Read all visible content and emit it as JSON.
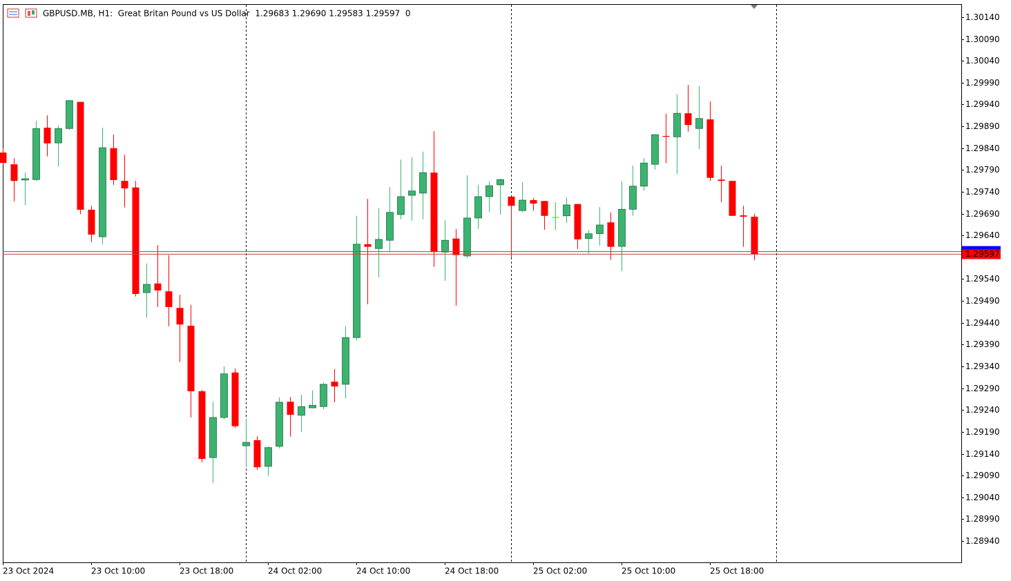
{
  "chart_data": {
    "type": "candlestick",
    "title": "GBPUSD.MB, H1:  Great Britan Pound vs US Dollar  1.29683 1.29690 1.29583 1.29597  0",
    "categories": [
      "23 Oct 2024",
      null,
      null,
      null,
      null,
      null,
      null,
      null,
      "23 Oct 10:00",
      null,
      null,
      null,
      null,
      null,
      null,
      null,
      "23 Oct 18:00",
      null,
      null,
      null,
      null,
      null,
      null,
      null,
      "24 Oct 02:00",
      null,
      null,
      null,
      null,
      null,
      null,
      null,
      "24 Oct 10:00",
      null,
      null,
      null,
      null,
      null,
      null,
      null,
      "24 Oct 18:00",
      null,
      null,
      null,
      null,
      null,
      null,
      null,
      "25 Oct 02:00",
      null,
      null,
      null,
      null,
      null,
      null,
      null,
      "25 Oct 10:00",
      null,
      null,
      null,
      null,
      null,
      null,
      null,
      "25 Oct 18:00",
      null,
      null,
      null,
      null
    ],
    "open": [
      1.2983,
      1.29803,
      1.29767,
      1.29768,
      1.29887,
      1.29852,
      1.29885,
      1.29946,
      1.29699,
      1.29637,
      1.2984,
      1.29765,
      1.2975,
      1.29509,
      1.2953,
      1.29512,
      1.29474,
      1.29433,
      1.29283,
      1.29131,
      1.29223,
      1.29326,
      1.29158,
      1.29171,
      1.29111,
      1.29157,
      1.29259,
      1.29228,
      1.29245,
      1.29248,
      1.29305,
      1.29299,
      1.29406,
      1.2962,
      1.2961,
      1.29629,
      1.29688,
      1.29732,
      1.29737,
      1.29784,
      1.29602,
      1.29633,
      1.29593,
      1.2968,
      1.29729,
      1.29756,
      1.29729,
      1.29697,
      1.29721,
      1.29719,
      1.29682,
      1.29685,
      1.29712,
      1.29633,
      1.29644,
      1.2967,
      1.29615,
      1.297,
      1.29753,
      1.29803,
      1.29868,
      1.29866,
      1.2992,
      1.29885,
      1.29906,
      1.29768,
      1.29765,
      1.29686,
      1.29683
    ],
    "high": [
      1.2984,
      1.29817,
      1.29784,
      1.29903,
      1.29915,
      1.29892,
      1.29949,
      1.29946,
      1.29708,
      1.29887,
      1.29871,
      1.29825,
      1.29765,
      1.29576,
      1.29618,
      1.29595,
      1.29504,
      1.29481,
      1.29286,
      1.29259,
      1.2934,
      1.29335,
      1.2922,
      1.2918,
      1.29157,
      1.29269,
      1.2927,
      1.29275,
      1.29285,
      1.29302,
      1.29334,
      1.29432,
      1.29685,
      1.29724,
      1.29702,
      1.29751,
      1.29814,
      1.29819,
      1.29832,
      1.29879,
      1.29675,
      1.29655,
      1.29778,
      1.29756,
      1.29764,
      1.2977,
      1.29729,
      1.29762,
      1.29726,
      1.29719,
      1.29716,
      1.29727,
      1.29712,
      1.29652,
      1.29705,
      1.29693,
      1.29764,
      1.298,
      1.29817,
      1.29871,
      1.29919,
      1.29963,
      1.29985,
      1.29982,
      1.29947,
      1.298,
      1.29765,
      1.29708,
      1.2969
    ],
    "low": [
      1.29803,
      1.29718,
      1.2971,
      1.29765,
      1.29821,
      1.29798,
      1.29882,
      1.29689,
      1.29625,
      1.2962,
      1.29756,
      1.29704,
      1.295,
      1.29452,
      1.29476,
      1.29432,
      1.2935,
      1.29223,
      1.2912,
      1.29073,
      1.29218,
      1.29199,
      1.29109,
      1.29103,
      1.29089,
      1.29152,
      1.29179,
      1.2919,
      1.29244,
      1.29242,
      1.29258,
      1.29266,
      1.29399,
      1.29482,
      1.29544,
      1.29602,
      1.29677,
      1.29674,
      1.29677,
      1.29568,
      1.29536,
      1.29479,
      1.29588,
      1.29655,
      1.29694,
      1.29688,
      1.2959,
      1.29694,
      1.29697,
      1.29653,
      1.29652,
      1.29669,
      1.29609,
      1.29599,
      1.29617,
      1.29584,
      1.29558,
      1.29685,
      1.29743,
      1.29791,
      1.29806,
      1.29781,
      1.29878,
      1.29838,
      1.29765,
      1.29716,
      1.29685,
      1.29614,
      1.29583
    ],
    "close": [
      1.29806,
      1.29765,
      1.2977,
      1.29885,
      1.29851,
      1.29885,
      1.29949,
      1.29699,
      1.29642,
      1.29841,
      1.29767,
      1.29748,
      1.29506,
      1.29528,
      1.29514,
      1.29476,
      1.29436,
      1.29283,
      1.29128,
      1.29223,
      1.29323,
      1.29203,
      1.29166,
      1.29109,
      1.29154,
      1.29258,
      1.29229,
      1.29248,
      1.29251,
      1.29299,
      1.29294,
      1.29406,
      1.2962,
      1.29614,
      1.29631,
      1.29693,
      1.29729,
      1.29742,
      1.29784,
      1.29602,
      1.29629,
      1.29595,
      1.2968,
      1.29729,
      1.29754,
      1.29768,
      1.29708,
      1.29721,
      1.29713,
      1.29685,
      1.29682,
      1.2971,
      1.29631,
      1.29644,
      1.29664,
      1.29614,
      1.297,
      1.29753,
      1.29806,
      1.29871,
      1.29866,
      1.2992,
      1.29893,
      1.29908,
      1.29772,
      1.29765,
      1.29685,
      1.29683,
      1.29597
    ],
    "up_color": "#3cb371",
    "down_color": "#ff0000",
    "doji_color": "#22dd22",
    "ylim": [
      1.28891,
      1.3017
    ],
    "yticks": [
      {
        "value": 1.3014,
        "label": "1.30140"
      },
      {
        "value": 1.3009,
        "label": "1.30090"
      },
      {
        "value": 1.3004,
        "label": "1.30040"
      },
      {
        "value": 1.2999,
        "label": "1.29990"
      },
      {
        "value": 1.2994,
        "label": "1.29940"
      },
      {
        "value": 1.2989,
        "label": "1.29890"
      },
      {
        "value": 1.2984,
        "label": "1.29840"
      },
      {
        "value": 1.2979,
        "label": "1.29790"
      },
      {
        "value": 1.2974,
        "label": "1.29740"
      },
      {
        "value": 1.2969,
        "label": "1.29690"
      },
      {
        "value": 1.2964,
        "label": "1.29640"
      },
      {
        "value": 1.2954,
        "label": "1.29540"
      },
      {
        "value": 1.2949,
        "label": "1.29490"
      },
      {
        "value": 1.2944,
        "label": "1.29440"
      },
      {
        "value": 1.2939,
        "label": "1.29390"
      },
      {
        "value": 1.2934,
        "label": "1.29340"
      },
      {
        "value": 1.2929,
        "label": "1.29290"
      },
      {
        "value": 1.2924,
        "label": "1.29240"
      },
      {
        "value": 1.2919,
        "label": "1.29190"
      },
      {
        "value": 1.2914,
        "label": "1.29140"
      },
      {
        "value": 1.2909,
        "label": "1.29090"
      },
      {
        "value": 1.2904,
        "label": "1.29040"
      },
      {
        "value": 1.2899,
        "label": "1.28990"
      },
      {
        "value": 1.2894,
        "label": "1.28940"
      }
    ],
    "current_price": {
      "value": 1.29597,
      "label": "1.29597"
    },
    "ask_line": 1.29603
  }
}
